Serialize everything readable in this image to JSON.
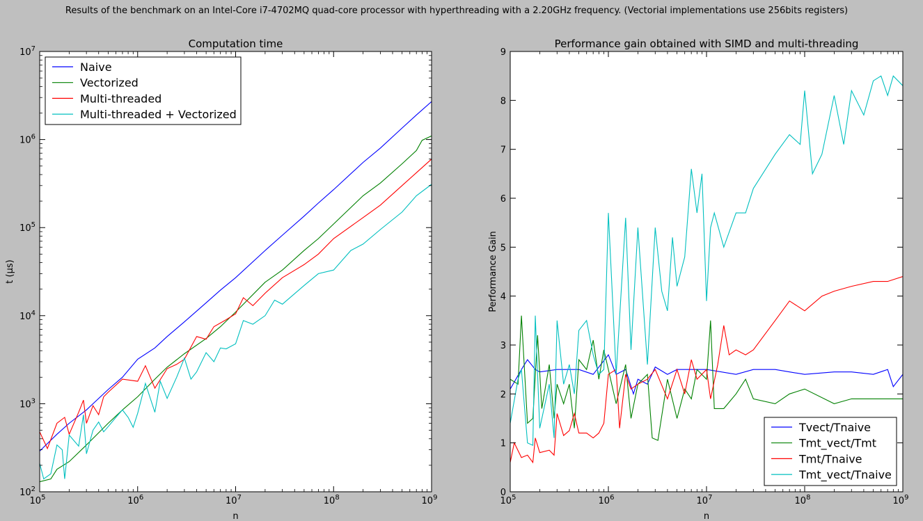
{
  "suptitle": "Results of the benchmark on an Intel-Core i7-4702MQ quad-core processor with hyperthreading with a 2.20GHz frequency. (Vectorial implementations use 256bits registers)",
  "chart_data": [
    {
      "type": "line",
      "title": "Computation time",
      "xlabel": "n",
      "ylabel": "t (µs)",
      "xscale": "log",
      "yscale": "log",
      "xlim": [
        100000,
        1000000000
      ],
      "ylim": [
        100,
        10000000
      ],
      "xticks": [
        {
          "v": 100000,
          "b": "10",
          "e": "5"
        },
        {
          "v": 1000000,
          "b": "10",
          "e": "6"
        },
        {
          "v": 10000000,
          "b": "10",
          "e": "7"
        },
        {
          "v": 100000000,
          "b": "10",
          "e": "8"
        },
        {
          "v": 1000000000,
          "b": "10",
          "e": "9"
        }
      ],
      "yticks": [
        {
          "v": 100,
          "b": "10",
          "e": "2"
        },
        {
          "v": 1000,
          "b": "10",
          "e": "3"
        },
        {
          "v": 10000,
          "b": "10",
          "e": "4"
        },
        {
          "v": 100000,
          "b": "10",
          "e": "5"
        },
        {
          "v": 1000000,
          "b": "10",
          "e": "6"
        },
        {
          "v": 10000000,
          "b": "10",
          "e": "7"
        }
      ],
      "legend_position": "top-left",
      "grid": false,
      "series": [
        {
          "name": "Naive",
          "color": "#0000ff",
          "x": [
            100000,
            150000,
            200000,
            300000,
            500000,
            700000,
            1000000,
            1500000,
            2000000,
            3000000,
            5000000,
            7000000,
            10000000,
            20000000,
            30000000,
            50000000,
            70000000,
            100000000,
            200000000,
            300000000,
            500000000,
            700000000,
            1000000000
          ],
          "y": [
            290,
            450,
            600,
            850,
            1450,
            2000,
            3200,
            4300,
            5800,
            8500,
            14000,
            19500,
            27000,
            55000,
            82000,
            135000,
            190000,
            270000,
            550000,
            800000,
            1350000,
            1900000,
            2700000
          ]
        },
        {
          "name": "Vectorized",
          "color": "#008000",
          "x": [
            100000,
            130000,
            150000,
            200000,
            300000,
            500000,
            700000,
            1000000,
            1500000,
            2000000,
            3000000,
            5000000,
            7000000,
            10000000,
            20000000,
            30000000,
            50000000,
            70000000,
            100000000,
            200000000,
            300000000,
            500000000,
            700000000,
            800000000,
            1000000000
          ],
          "y": [
            130,
            140,
            180,
            220,
            340,
            600,
            850,
            1200,
            1900,
            2600,
            3700,
            5500,
            7500,
            11000,
            24000,
            33000,
            55000,
            75000,
            110000,
            230000,
            320000,
            530000,
            750000,
            980000,
            1100000
          ]
        },
        {
          "name": "Multi-threaded",
          "color": "#ff0000",
          "x": [
            100000,
            120000,
            150000,
            180000,
            200000,
            250000,
            280000,
            300000,
            350000,
            400000,
            450000,
            500000,
            700000,
            1000000,
            1200000,
            1500000,
            2000000,
            2500000,
            3000000,
            4000000,
            5000000,
            6000000,
            8000000,
            10000000,
            12000000,
            15000000,
            20000000,
            30000000,
            50000000,
            70000000,
            100000000,
            200000000,
            300000000,
            500000000,
            700000000,
            1000000000
          ],
          "y": [
            480,
            310,
            600,
            700,
            450,
            800,
            1100,
            600,
            950,
            750,
            1200,
            1350,
            1900,
            1800,
            2700,
            1500,
            2500,
            2800,
            3200,
            5800,
            5400,
            7500,
            9000,
            10500,
            16000,
            13000,
            18000,
            27000,
            38000,
            50000,
            75000,
            130000,
            180000,
            300000,
            420000,
            600000
          ]
        },
        {
          "name": "Multi-threaded + Vectorized",
          "color": "#00bfbf",
          "x": [
            100000,
            110000,
            130000,
            150000,
            170000,
            180000,
            200000,
            250000,
            280000,
            300000,
            350000,
            400000,
            450000,
            500000,
            600000,
            700000,
            800000,
            900000,
            1000000,
            1200000,
            1500000,
            1700000,
            2000000,
            2500000,
            3000000,
            3500000,
            4000000,
            5000000,
            6000000,
            7000000,
            8000000,
            10000000,
            12000000,
            15000000,
            20000000,
            25000000,
            30000000,
            50000000,
            70000000,
            100000000,
            150000000,
            200000000,
            300000000,
            500000000,
            700000000,
            1000000000
          ],
          "y": [
            210,
            140,
            160,
            340,
            300,
            140,
            440,
            330,
            750,
            270,
            500,
            620,
            480,
            550,
            700,
            850,
            700,
            540,
            780,
            1700,
            800,
            1800,
            1150,
            2000,
            3300,
            1900,
            2300,
            3800,
            3000,
            4300,
            4200,
            4800,
            8800,
            8000,
            10000,
            15000,
            13500,
            22000,
            30000,
            33000,
            55000,
            65000,
            95000,
            150000,
            230000,
            310000
          ]
        }
      ]
    },
    {
      "type": "line",
      "title": "Performance gain obtained with SIMD and multi-threading",
      "xlabel": "n",
      "ylabel": "Performance Gain",
      "xscale": "log",
      "yscale": "linear",
      "xlim": [
        100000,
        1000000000
      ],
      "ylim": [
        0,
        9
      ],
      "xticks": [
        {
          "v": 100000,
          "b": "10",
          "e": "5"
        },
        {
          "v": 1000000,
          "b": "10",
          "e": "6"
        },
        {
          "v": 10000000,
          "b": "10",
          "e": "7"
        },
        {
          "v": 100000000,
          "b": "10",
          "e": "8"
        },
        {
          "v": 1000000000,
          "b": "10",
          "e": "9"
        }
      ],
      "yticks": [
        {
          "v": 0,
          "b": "0"
        },
        {
          "v": 1,
          "b": "1"
        },
        {
          "v": 2,
          "b": "2"
        },
        {
          "v": 3,
          "b": "3"
        },
        {
          "v": 4,
          "b": "4"
        },
        {
          "v": 5,
          "b": "5"
        },
        {
          "v": 6,
          "b": "6"
        },
        {
          "v": 7,
          "b": "7"
        },
        {
          "v": 8,
          "b": "8"
        },
        {
          "v": 9,
          "b": "9"
        }
      ],
      "legend_position": "bottom-right",
      "grid": false,
      "series": [
        {
          "name": "Tvect/Tnaive",
          "color": "#0000ff",
          "x": [
            100000,
            130000,
            150000,
            180000,
            200000,
            300000,
            500000,
            700000,
            1000000,
            1200000,
            1500000,
            1800000,
            2000000,
            2500000,
            3000000,
            4000000,
            5000000,
            7000000,
            10000000,
            20000000,
            30000000,
            50000000,
            70000000,
            100000000,
            200000000,
            300000000,
            500000000,
            700000000,
            800000000,
            1000000000
          ],
          "y": [
            2.1,
            2.5,
            2.7,
            2.5,
            2.45,
            2.5,
            2.5,
            2.4,
            2.8,
            2.4,
            2.5,
            2.0,
            2.3,
            2.2,
            2.55,
            2.4,
            2.5,
            2.5,
            2.5,
            2.4,
            2.5,
            2.5,
            2.45,
            2.4,
            2.45,
            2.45,
            2.4,
            2.5,
            2.15,
            2.4
          ]
        },
        {
          "name": "Tmt_vect/Tmt",
          "color": "#008000",
          "x": [
            100000,
            120000,
            130000,
            150000,
            170000,
            190000,
            210000,
            250000,
            280000,
            300000,
            350000,
            400000,
            450000,
            500000,
            600000,
            700000,
            800000,
            900000,
            1000000,
            1200000,
            1500000,
            1700000,
            2000000,
            2500000,
            2800000,
            3200000,
            4000000,
            5000000,
            6000000,
            7000000,
            8000000,
            10000000,
            11000000,
            12000000,
            15000000,
            20000000,
            25000000,
            30000000,
            50000000,
            70000000,
            100000000,
            200000000,
            300000000,
            500000000,
            700000000,
            1000000000
          ],
          "y": [
            2.3,
            2.2,
            3.6,
            1.4,
            1.5,
            3.2,
            1.7,
            2.6,
            1.5,
            2.2,
            1.8,
            2.2,
            1.3,
            2.7,
            2.5,
            3.1,
            2.3,
            2.9,
            2.5,
            1.8,
            2.6,
            1.5,
            2.2,
            2.4,
            1.1,
            1.05,
            2.3,
            1.5,
            2.1,
            1.9,
            2.5,
            2.3,
            3.5,
            1.7,
            1.7,
            2.0,
            2.3,
            1.9,
            1.8,
            2.0,
            2.1,
            1.8,
            1.9,
            1.9,
            1.9,
            1.9
          ]
        },
        {
          "name": "Tmt/Tnaive",
          "color": "#ff0000",
          "x": [
            100000,
            110000,
            130000,
            150000,
            170000,
            180000,
            200000,
            250000,
            280000,
            300000,
            350000,
            400000,
            450000,
            500000,
            600000,
            700000,
            800000,
            900000,
            1000000,
            1200000,
            1300000,
            1500000,
            1700000,
            2000000,
            2500000,
            3000000,
            4000000,
            5000000,
            6000000,
            7000000,
            8000000,
            10000000,
            11000000,
            13000000,
            15000000,
            17000000,
            20000000,
            25000000,
            30000000,
            50000000,
            70000000,
            100000000,
            150000000,
            200000000,
            300000000,
            500000000,
            700000000,
            1000000000
          ],
          "y": [
            0.6,
            1.0,
            0.7,
            0.75,
            0.6,
            1.1,
            0.8,
            0.85,
            0.75,
            1.6,
            1.15,
            1.25,
            1.6,
            1.2,
            1.2,
            1.1,
            1.2,
            1.4,
            2.4,
            2.5,
            1.3,
            2.4,
            2.1,
            2.2,
            2.3,
            2.5,
            1.9,
            2.5,
            2.0,
            2.7,
            2.3,
            2.5,
            1.9,
            2.6,
            3.4,
            2.8,
            2.9,
            2.8,
            2.9,
            3.5,
            3.9,
            3.7,
            4.0,
            4.1,
            4.2,
            4.3,
            4.3,
            4.4
          ]
        },
        {
          "name": "Tmt_vect/Tnaive",
          "color": "#00bfbf",
          "x": [
            100000,
            120000,
            130000,
            150000,
            170000,
            180000,
            200000,
            250000,
            280000,
            300000,
            350000,
            400000,
            450000,
            500000,
            600000,
            700000,
            800000,
            900000,
            1000000,
            1200000,
            1500000,
            1700000,
            2000000,
            2500000,
            3000000,
            3500000,
            4000000,
            4500000,
            5000000,
            6000000,
            7000000,
            8000000,
            9000000,
            10000000,
            11000000,
            12000000,
            15000000,
            20000000,
            25000000,
            30000000,
            50000000,
            70000000,
            90000000,
            100000000,
            120000000,
            150000000,
            200000000,
            250000000,
            300000000,
            400000000,
            500000000,
            600000000,
            700000000,
            800000000,
            1000000000
          ],
          "y": [
            1.4,
            2.3,
            2.5,
            1.0,
            0.95,
            3.6,
            1.3,
            2.2,
            1.1,
            3.5,
            2.2,
            2.6,
            2.0,
            3.3,
            3.5,
            2.8,
            2.4,
            2.5,
            5.7,
            2.4,
            5.6,
            2.9,
            5.4,
            2.6,
            5.4,
            4.1,
            3.7,
            5.2,
            4.2,
            4.8,
            6.6,
            5.7,
            6.5,
            3.9,
            5.4,
            5.7,
            5.0,
            5.7,
            5.7,
            6.2,
            6.9,
            7.3,
            7.1,
            8.2,
            6.5,
            6.9,
            8.1,
            7.1,
            8.2,
            7.7,
            8.4,
            8.5,
            8.1,
            8.5,
            8.3
          ]
        }
      ]
    }
  ]
}
